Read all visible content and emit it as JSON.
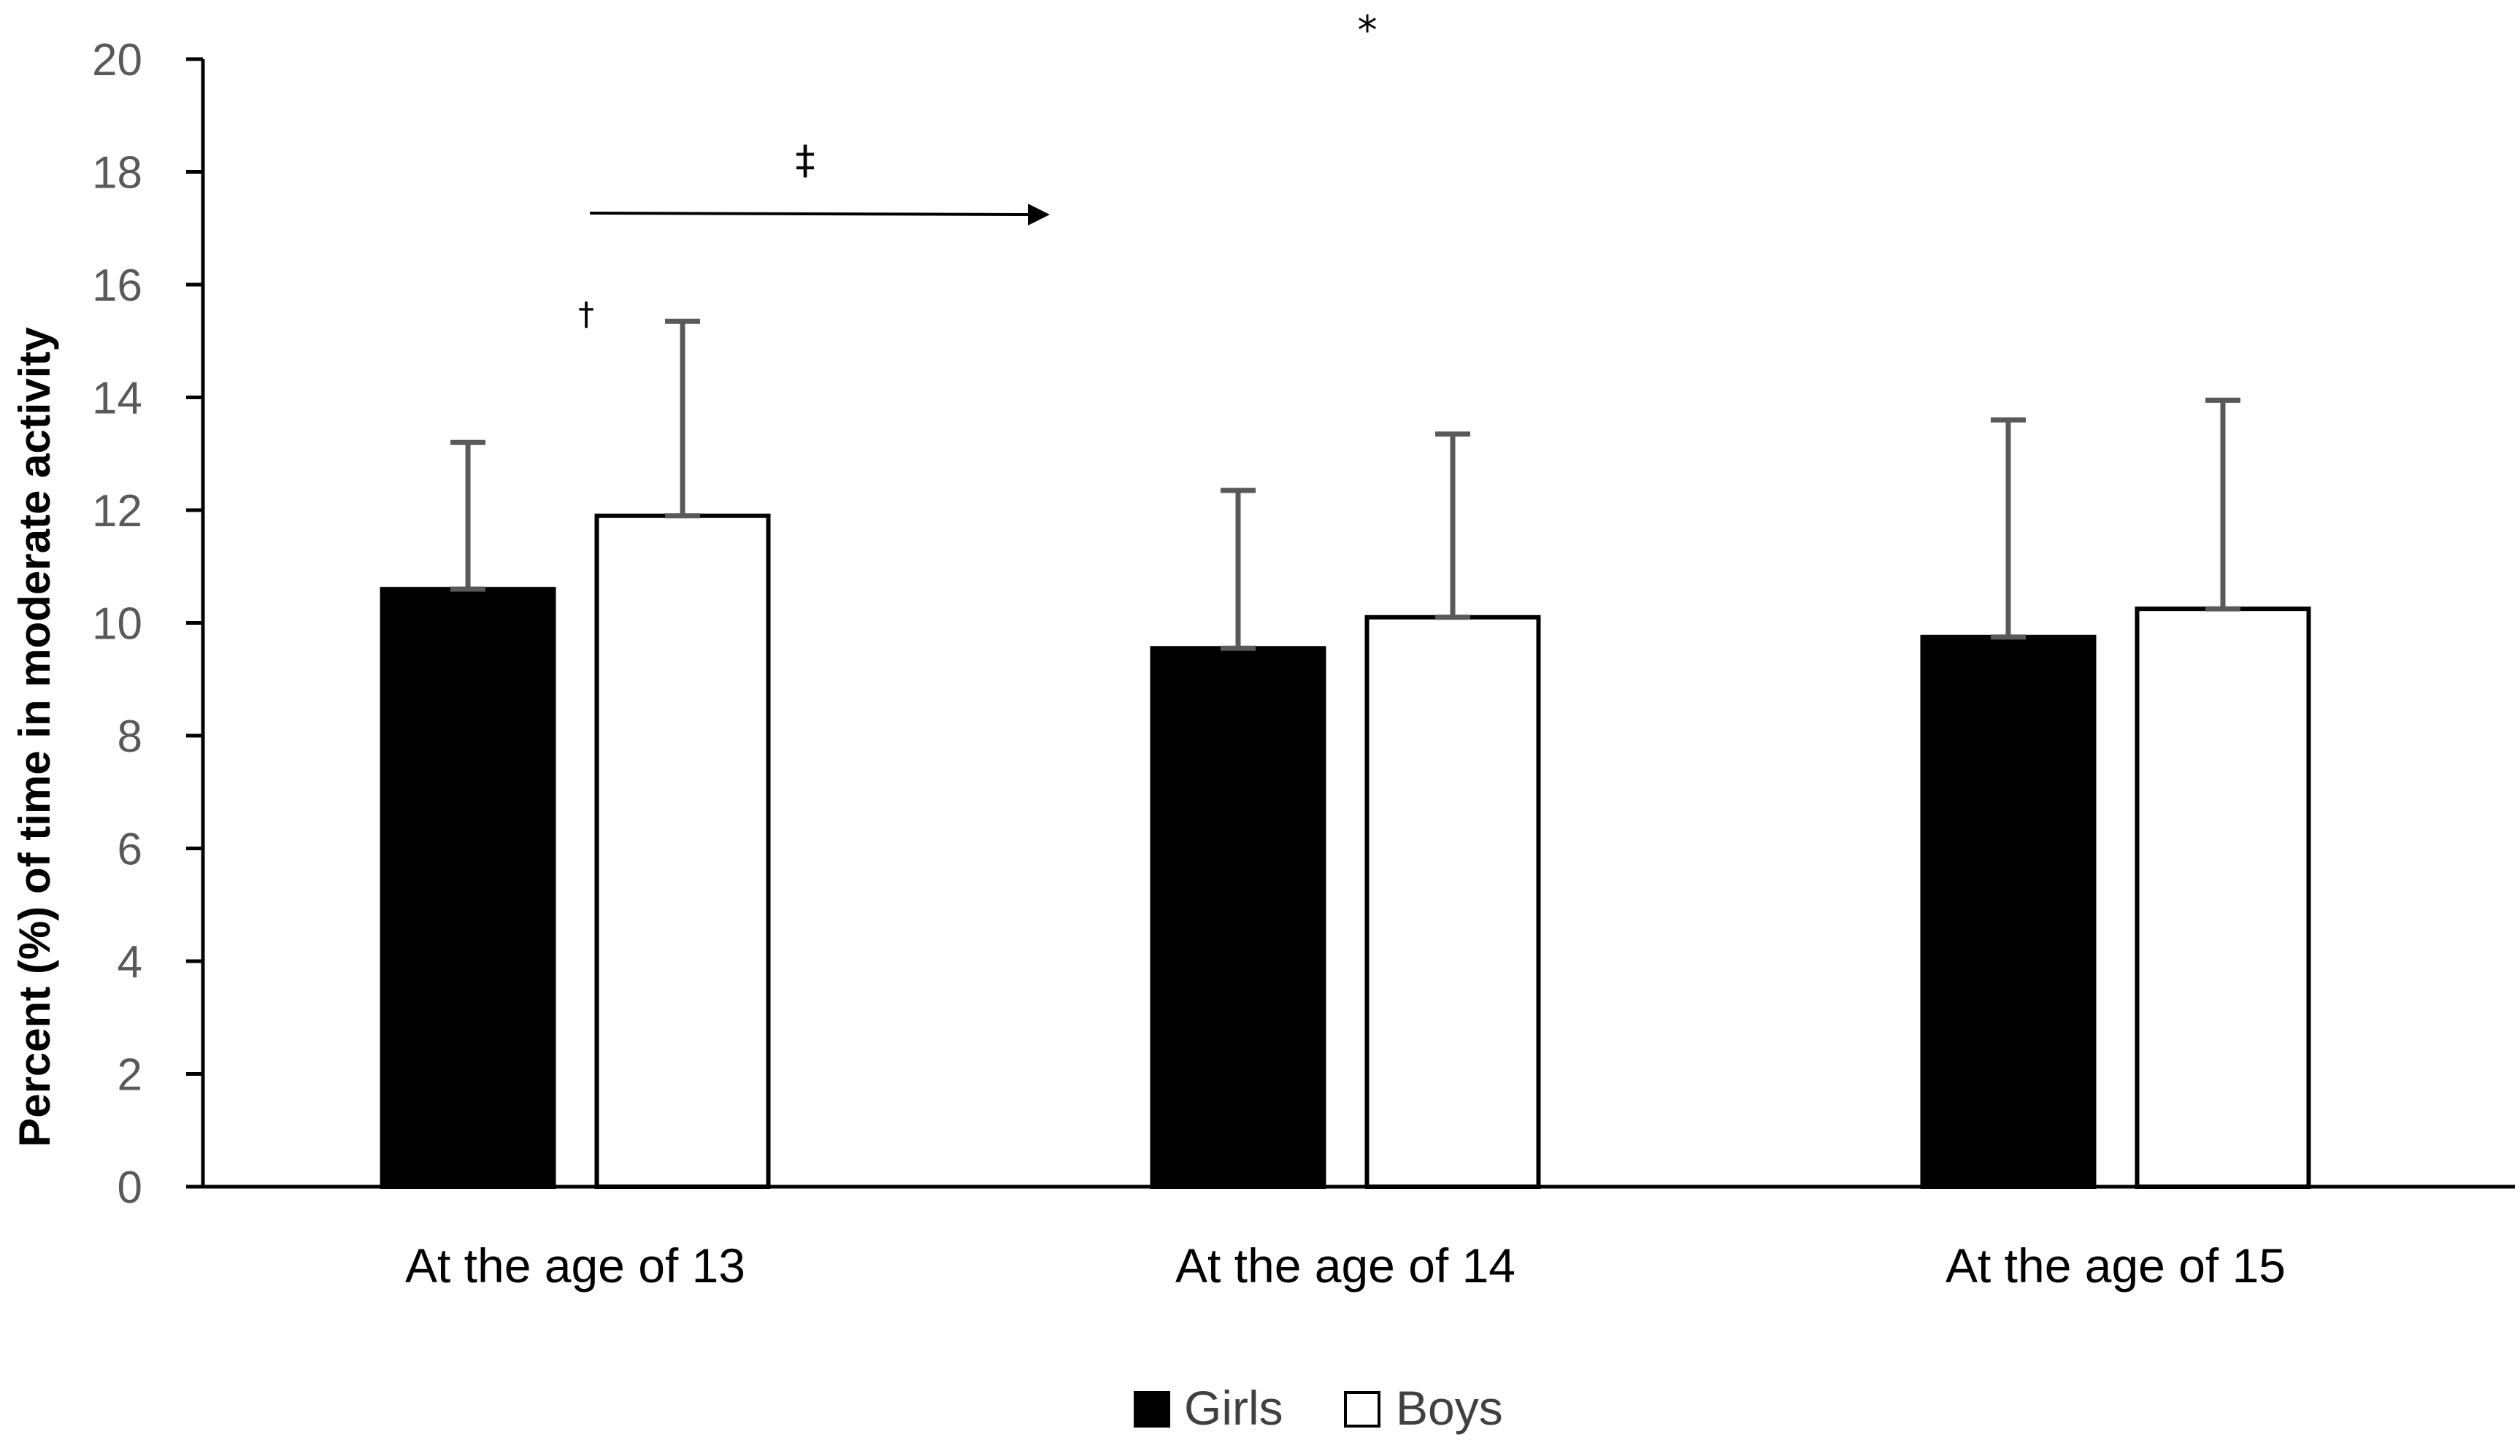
{
  "chart_data": {
    "type": "bar",
    "title": "",
    "xlabel": "",
    "ylabel": "Percent (%) of time in moderate  activity",
    "ylim": [
      0,
      20
    ],
    "yticks": [
      0,
      2,
      4,
      6,
      8,
      10,
      12,
      14,
      16,
      18,
      20
    ],
    "grid": false,
    "legend_position": "bottom-center",
    "categories": [
      "At the age of 13",
      "At the age of 14",
      "At the age of 15"
    ],
    "series": [
      {
        "name": "Girls",
        "color": "#000000",
        "values": [
          10.6,
          9.55,
          9.75
        ],
        "error_upper": [
          2.6,
          2.8,
          3.85
        ]
      },
      {
        "name": "Boys",
        "color": "#ffffff",
        "values": [
          11.9,
          10.1,
          10.25
        ],
        "error_upper": [
          3.45,
          3.25,
          3.7
        ]
      }
    ],
    "annotations": {
      "dagger": "†",
      "double_dagger": "‡",
      "asterisk": "*"
    }
  }
}
